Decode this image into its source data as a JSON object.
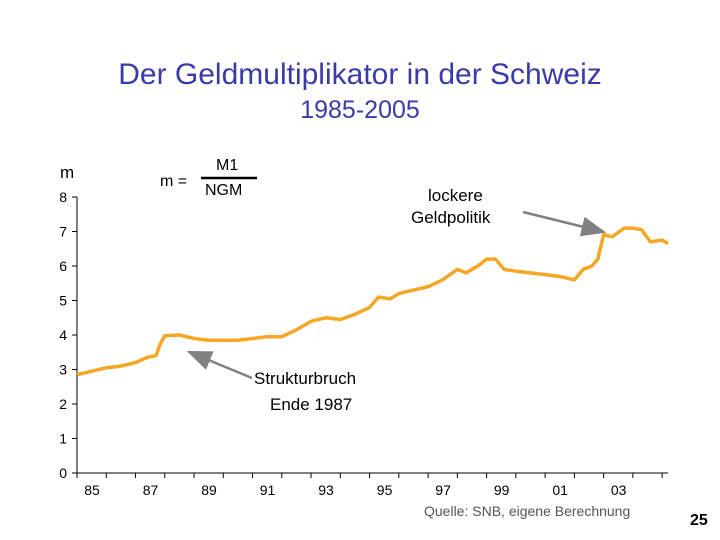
{
  "page": {
    "title": "Der Geldmultiplikator in der Schweiz",
    "subtitle": "1985-2005",
    "source": "Quelle: SNB, eigene Berechnung",
    "page_number": "25"
  },
  "formula": {
    "lhs": "m =",
    "numerator": "M1",
    "denominator": "NGM"
  },
  "annotations": {
    "lockere_line1": "lockere",
    "lockere_line2": "Geldpolitik",
    "struktur_line1": "Strukturbruch",
    "struktur_line2": "Ende 1987"
  },
  "colors": {
    "title": "#3a3aa8",
    "series": "#f5a623",
    "arrow": "#808080"
  },
  "chart_data": {
    "type": "line",
    "title": "Der Geldmultiplikator in der Schweiz 1985-2005",
    "ylabel": "m",
    "xlabel": "",
    "ylim": [
      0,
      8
    ],
    "xlim": [
      1985,
      2005.2
    ],
    "yticks": [
      0,
      1,
      2,
      3,
      4,
      5,
      6,
      7,
      8
    ],
    "xtick_labels": [
      "85",
      "87",
      "89",
      "91",
      "93",
      "95",
      "97",
      "99",
      "01",
      "03"
    ],
    "xtick_years": [
      1985,
      1987,
      1989,
      1991,
      1993,
      1995,
      1997,
      1999,
      2001,
      2003
    ],
    "series": [
      {
        "name": "m",
        "x": [
          1985.0,
          1985.5,
          1986.0,
          1986.5,
          1987.0,
          1987.4,
          1987.7,
          1987.85,
          1988.0,
          1988.5,
          1989.0,
          1989.5,
          1990.0,
          1990.5,
          1991.0,
          1991.5,
          1992.0,
          1992.5,
          1993.0,
          1993.5,
          1994.0,
          1994.5,
          1995.0,
          1995.3,
          1995.7,
          1996.0,
          1996.5,
          1997.0,
          1997.5,
          1998.0,
          1998.3,
          1998.7,
          1999.0,
          1999.3,
          1999.6,
          2000.0,
          2000.5,
          2001.0,
          2001.5,
          2002.0,
          2002.3,
          2002.6,
          2002.8,
          2003.0,
          2003.3,
          2003.7,
          2004.0,
          2004.3,
          2004.6,
          2005.0,
          2005.2
        ],
        "values": [
          2.85,
          2.95,
          3.05,
          3.1,
          3.2,
          3.35,
          3.4,
          3.75,
          3.98,
          4.0,
          3.9,
          3.85,
          3.85,
          3.85,
          3.9,
          3.95,
          3.95,
          4.15,
          4.4,
          4.5,
          4.45,
          4.6,
          4.8,
          5.1,
          5.05,
          5.2,
          5.3,
          5.4,
          5.6,
          5.9,
          5.8,
          6.0,
          6.2,
          6.2,
          5.9,
          5.85,
          5.8,
          5.75,
          5.7,
          5.6,
          5.9,
          6.0,
          6.2,
          6.9,
          6.85,
          7.1,
          7.1,
          7.05,
          6.7,
          6.75,
          6.65
        ]
      }
    ]
  }
}
